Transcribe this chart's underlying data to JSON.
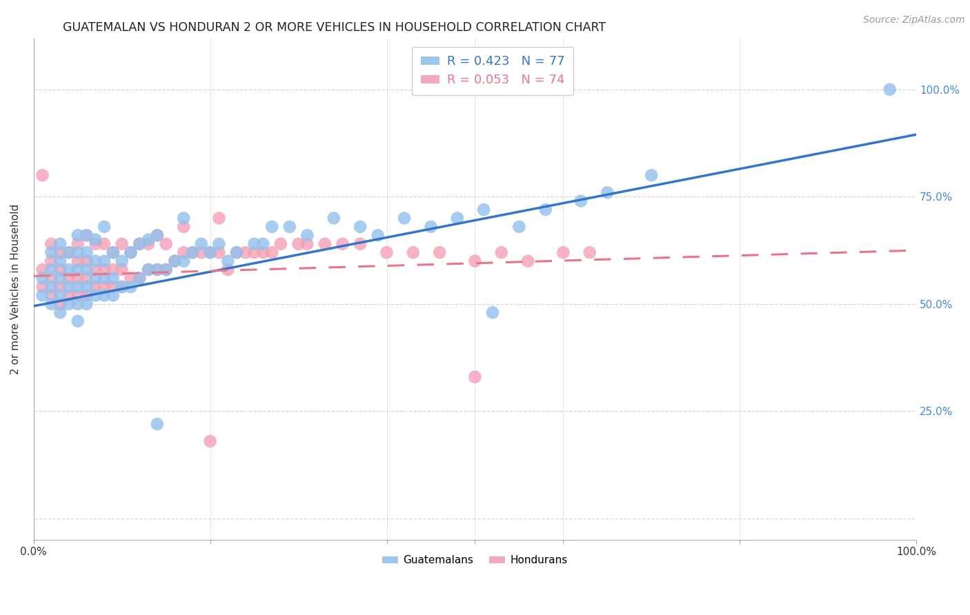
{
  "title": "GUATEMALAN VS HONDURAN 2 OR MORE VEHICLES IN HOUSEHOLD CORRELATION CHART",
  "source": "Source: ZipAtlas.com",
  "ylabel": "2 or more Vehicles in Household",
  "xlim": [
    0.0,
    1.0
  ],
  "ylim": [
    -0.05,
    1.12
  ],
  "guatemalan_color": "#92c0ec",
  "honduran_color": "#f4a0b5",
  "guatemalan_line_color": "#3375c8",
  "honduran_line_color": "#e8758a",
  "right_tick_color": "#4488dd",
  "legend_label_1": "R = 0.423   N = 77",
  "legend_label_2": "R = 0.053   N = 74",
  "background_color": "#ffffff",
  "grid_color": "#cccccc",
  "title_color": "#222222",
  "title_fontsize": 12.5,
  "label_fontsize": 11,
  "tick_fontsize": 11,
  "source_fontsize": 10,
  "legend_fontsize": 13,
  "guatemalan_x": [
    0.01,
    0.01,
    0.02,
    0.02,
    0.02,
    0.02,
    0.03,
    0.03,
    0.03,
    0.03,
    0.03,
    0.04,
    0.04,
    0.04,
    0.04,
    0.05,
    0.05,
    0.05,
    0.05,
    0.05,
    0.05,
    0.06,
    0.06,
    0.06,
    0.06,
    0.06,
    0.07,
    0.07,
    0.07,
    0.07,
    0.08,
    0.08,
    0.08,
    0.08,
    0.09,
    0.09,
    0.09,
    0.1,
    0.1,
    0.11,
    0.11,
    0.12,
    0.12,
    0.13,
    0.13,
    0.14,
    0.14,
    0.15,
    0.16,
    0.17,
    0.17,
    0.18,
    0.19,
    0.2,
    0.21,
    0.22,
    0.23,
    0.25,
    0.26,
    0.27,
    0.29,
    0.31,
    0.34,
    0.37,
    0.39,
    0.42,
    0.45,
    0.48,
    0.51,
    0.55,
    0.58,
    0.62,
    0.65,
    0.7,
    0.14,
    0.52,
    0.97
  ],
  "guatemalan_y": [
    0.52,
    0.56,
    0.5,
    0.54,
    0.58,
    0.62,
    0.48,
    0.52,
    0.56,
    0.6,
    0.64,
    0.5,
    0.54,
    0.58,
    0.62,
    0.46,
    0.5,
    0.54,
    0.58,
    0.62,
    0.66,
    0.5,
    0.54,
    0.58,
    0.62,
    0.66,
    0.52,
    0.56,
    0.6,
    0.65,
    0.52,
    0.56,
    0.6,
    0.68,
    0.52,
    0.56,
    0.62,
    0.54,
    0.6,
    0.54,
    0.62,
    0.56,
    0.64,
    0.58,
    0.65,
    0.58,
    0.66,
    0.58,
    0.6,
    0.6,
    0.7,
    0.62,
    0.64,
    0.62,
    0.64,
    0.6,
    0.62,
    0.64,
    0.64,
    0.68,
    0.68,
    0.66,
    0.7,
    0.68,
    0.66,
    0.7,
    0.68,
    0.7,
    0.72,
    0.68,
    0.72,
    0.74,
    0.76,
    0.8,
    0.22,
    0.48,
    1.0
  ],
  "honduran_x": [
    0.01,
    0.01,
    0.02,
    0.02,
    0.02,
    0.02,
    0.03,
    0.03,
    0.03,
    0.03,
    0.04,
    0.04,
    0.04,
    0.05,
    0.05,
    0.05,
    0.05,
    0.06,
    0.06,
    0.06,
    0.06,
    0.07,
    0.07,
    0.07,
    0.08,
    0.08,
    0.08,
    0.09,
    0.09,
    0.09,
    0.1,
    0.1,
    0.1,
    0.11,
    0.11,
    0.12,
    0.12,
    0.13,
    0.13,
    0.14,
    0.14,
    0.15,
    0.15,
    0.16,
    0.17,
    0.17,
    0.18,
    0.19,
    0.2,
    0.21,
    0.21,
    0.22,
    0.23,
    0.24,
    0.25,
    0.26,
    0.27,
    0.28,
    0.3,
    0.31,
    0.33,
    0.35,
    0.37,
    0.4,
    0.43,
    0.46,
    0.5,
    0.53,
    0.56,
    0.6,
    0.63,
    0.2,
    0.5,
    0.01
  ],
  "honduran_y": [
    0.54,
    0.58,
    0.52,
    0.56,
    0.6,
    0.64,
    0.5,
    0.54,
    0.58,
    0.62,
    0.52,
    0.56,
    0.62,
    0.52,
    0.56,
    0.6,
    0.64,
    0.52,
    0.56,
    0.6,
    0.66,
    0.54,
    0.58,
    0.64,
    0.54,
    0.58,
    0.64,
    0.54,
    0.58,
    0.62,
    0.54,
    0.58,
    0.64,
    0.56,
    0.62,
    0.56,
    0.64,
    0.58,
    0.64,
    0.58,
    0.66,
    0.58,
    0.64,
    0.6,
    0.62,
    0.68,
    0.62,
    0.62,
    0.62,
    0.62,
    0.7,
    0.58,
    0.62,
    0.62,
    0.62,
    0.62,
    0.62,
    0.64,
    0.64,
    0.64,
    0.64,
    0.64,
    0.64,
    0.62,
    0.62,
    0.62,
    0.6,
    0.62,
    0.6,
    0.62,
    0.62,
    0.18,
    0.33,
    0.8
  ],
  "blue_line_x0": 0.0,
  "blue_line_y0": 0.495,
  "blue_line_x1": 1.0,
  "blue_line_y1": 0.895,
  "pink_line_x0": 0.0,
  "pink_line_y0": 0.565,
  "pink_line_x1": 1.0,
  "pink_line_y1": 0.625
}
